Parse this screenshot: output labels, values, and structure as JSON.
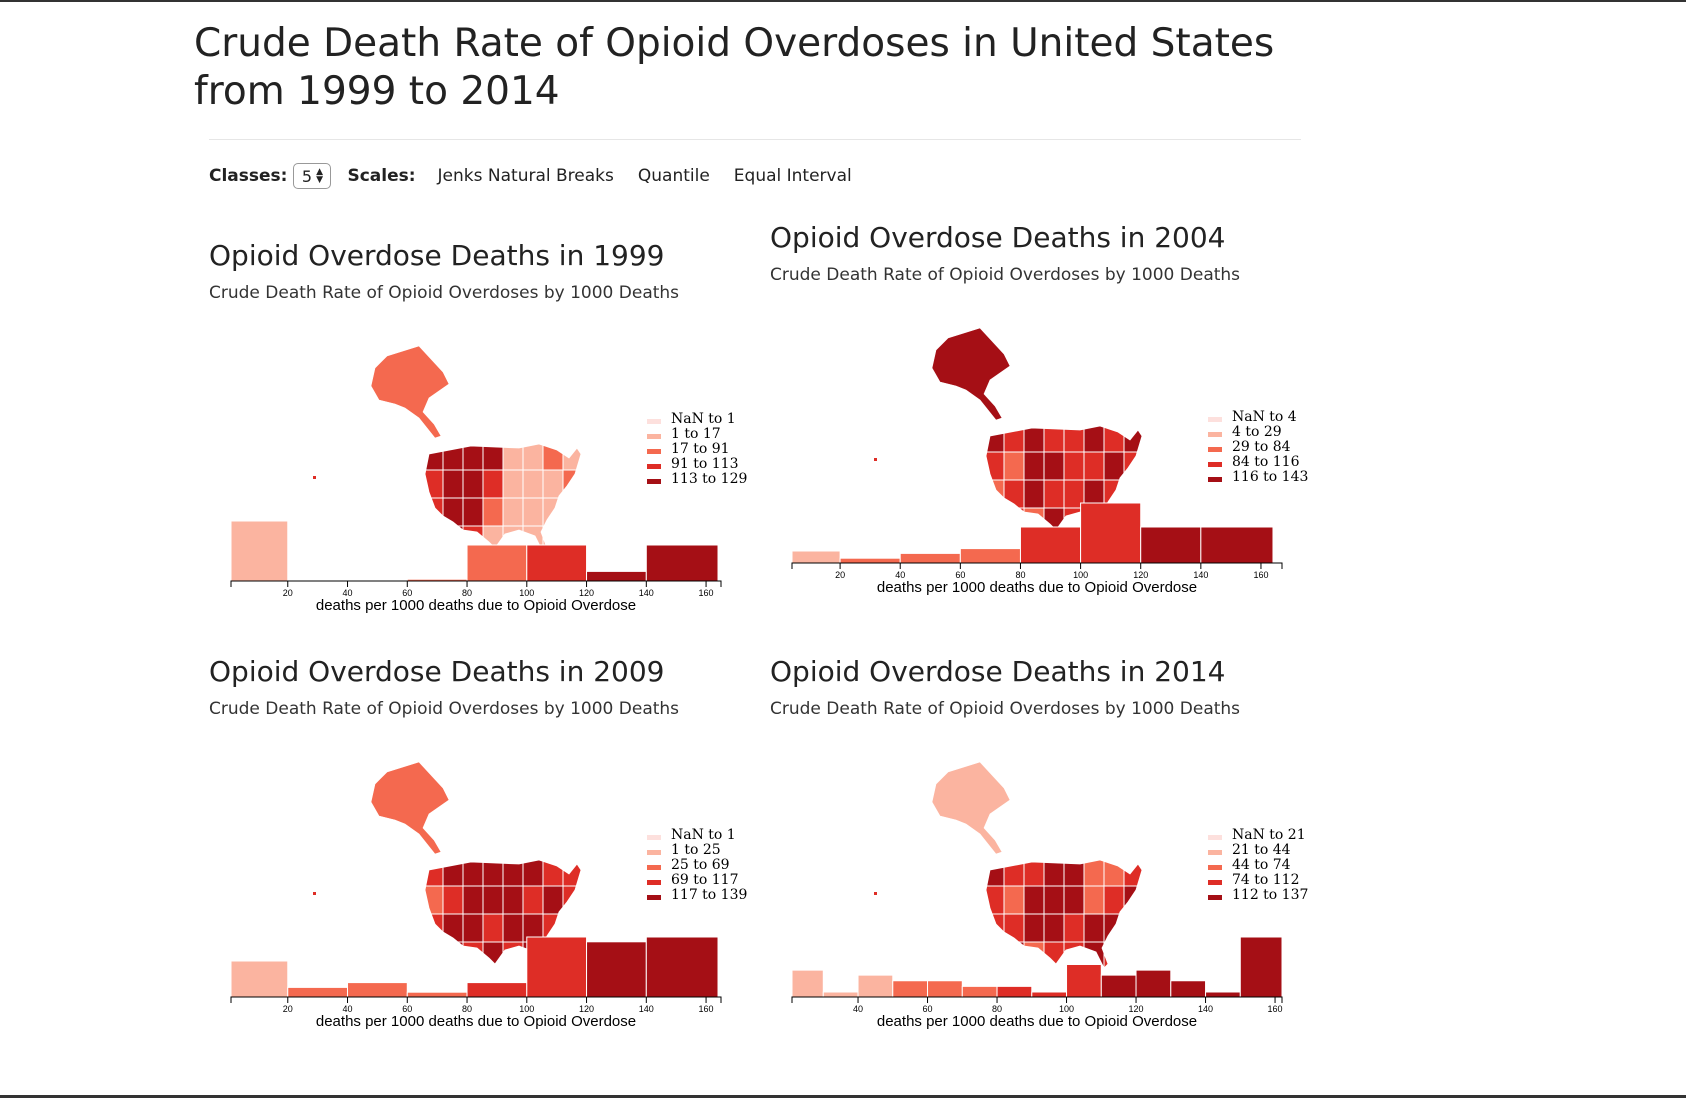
{
  "page": {
    "title": "Crude Death Rate of Opioid Overdoses in United States from 1999 to 2014"
  },
  "controls": {
    "classes_label": "Classes:",
    "classes_value": "5",
    "scales_label": "Scales:",
    "scales": [
      "Jenks Natural Breaks",
      "Quantile",
      "Equal Interval"
    ]
  },
  "colors": {
    "c0": "#fde0dd",
    "c1": "#fbb4a0",
    "c2": "#f4694f",
    "c3": "#de2d26",
    "c4": "#a50f15"
  },
  "panels": [
    {
      "title": "Opioid Overdose Deaths in 1999",
      "subtitle": "Crude Death Rate of Opioid Overdoses by 1000 Deaths",
      "legend": [
        "NaN to 1",
        "1 to 17",
        "17 to 91",
        "91 to 113",
        "113 to 129"
      ]
    },
    {
      "title": "Opioid Overdose Deaths in 2004",
      "subtitle": "Crude Death Rate of Opioid Overdoses by 1000 Deaths",
      "legend": [
        "NaN to 4",
        "4 to 29",
        "29 to 84",
        "84 to 116",
        "116 to 143"
      ]
    },
    {
      "title": "Opioid Overdose Deaths in 2009",
      "subtitle": "Crude Death Rate of Opioid Overdoses by 1000 Deaths",
      "legend": [
        "NaN to 1",
        "1 to 25",
        "25 to 69",
        "69 to 117",
        "117 to 139"
      ]
    },
    {
      "title": "Opioid Overdose Deaths in 2014",
      "subtitle": "Crude Death Rate of Opioid Overdoses by 1000 Deaths",
      "legend": [
        "NaN to 21",
        "21 to 44",
        "44 to 74",
        "74 to 112",
        "112 to 137"
      ]
    }
  ],
  "chart_data": [
    {
      "type": "bar",
      "title": "Opioid Overdose Deaths in 1999",
      "xlabel": "deaths per 1000 deaths due to Opioid Overdose",
      "xlim": [
        1,
        165
      ],
      "xticks": [
        20,
        40,
        60,
        80,
        100,
        120,
        140,
        160
      ],
      "bins": [
        {
          "x0": 1,
          "x1": 20,
          "count": 10,
          "cls": 1
        },
        {
          "x0": 20,
          "x1": 40,
          "count": 0,
          "cls": 1
        },
        {
          "x0": 40,
          "x1": 60,
          "count": 0,
          "cls": 1
        },
        {
          "x0": 60,
          "x1": 80,
          "count": 0.3,
          "cls": 2
        },
        {
          "x0": 80,
          "x1": 100,
          "count": 6,
          "cls": 2
        },
        {
          "x0": 100,
          "x1": 120,
          "count": 6,
          "cls": 3
        },
        {
          "x0": 120,
          "x1": 140,
          "count": 1.6,
          "cls": 4
        },
        {
          "x0": 140,
          "x1": 164,
          "count": 6,
          "cls": 4
        }
      ]
    },
    {
      "type": "bar",
      "title": "Opioid Overdose Deaths in 2004",
      "xlabel": "deaths per 1000 deaths due to Opioid Overdose",
      "xlim": [
        4,
        167
      ],
      "xticks": [
        20,
        40,
        60,
        80,
        100,
        120,
        140,
        160
      ],
      "bins": [
        {
          "x0": 4,
          "x1": 20,
          "count": 2,
          "cls": 1
        },
        {
          "x0": 20,
          "x1": 40,
          "count": 0.8,
          "cls": 2
        },
        {
          "x0": 40,
          "x1": 60,
          "count": 1.6,
          "cls": 2
        },
        {
          "x0": 60,
          "x1": 80,
          "count": 2.4,
          "cls": 2
        },
        {
          "x0": 80,
          "x1": 100,
          "count": 6,
          "cls": 3
        },
        {
          "x0": 100,
          "x1": 120,
          "count": 10,
          "cls": 3
        },
        {
          "x0": 120,
          "x1": 140,
          "count": 6,
          "cls": 4
        },
        {
          "x0": 140,
          "x1": 164,
          "count": 6,
          "cls": 4
        }
      ]
    },
    {
      "type": "bar",
      "title": "Opioid Overdose Deaths in 2009",
      "xlabel": "deaths per 1000 deaths due to Opioid Overdose",
      "xlim": [
        1,
        165
      ],
      "xticks": [
        20,
        40,
        60,
        80,
        100,
        120,
        140,
        160
      ],
      "bins": [
        {
          "x0": 1,
          "x1": 20,
          "count": 6,
          "cls": 1
        },
        {
          "x0": 20,
          "x1": 40,
          "count": 1.6,
          "cls": 2
        },
        {
          "x0": 40,
          "x1": 60,
          "count": 2.4,
          "cls": 2
        },
        {
          "x0": 60,
          "x1": 80,
          "count": 0.8,
          "cls": 2
        },
        {
          "x0": 80,
          "x1": 100,
          "count": 2.4,
          "cls": 3
        },
        {
          "x0": 100,
          "x1": 120,
          "count": 10,
          "cls": 3
        },
        {
          "x0": 120,
          "x1": 140,
          "count": 9.2,
          "cls": 4
        },
        {
          "x0": 140,
          "x1": 164,
          "count": 10,
          "cls": 4
        }
      ]
    },
    {
      "type": "bar",
      "title": "Opioid Overdose Deaths in 2014",
      "xlabel": "deaths per 1000 deaths due to Opioid Overdose",
      "xlim": [
        21,
        162
      ],
      "xticks": [
        40,
        60,
        80,
        100,
        120,
        140,
        160
      ],
      "bins": [
        {
          "x0": 21,
          "x1": 30,
          "count": 4.3,
          "cls": 1
        },
        {
          "x0": 30,
          "x1": 40,
          "count": 0.8,
          "cls": 1
        },
        {
          "x0": 40,
          "x1": 50,
          "count": 3.5,
          "cls": 1
        },
        {
          "x0": 50,
          "x1": 60,
          "count": 2.6,
          "cls": 2
        },
        {
          "x0": 60,
          "x1": 70,
          "count": 2.6,
          "cls": 2
        },
        {
          "x0": 70,
          "x1": 80,
          "count": 1.7,
          "cls": 2
        },
        {
          "x0": 80,
          "x1": 90,
          "count": 1.7,
          "cls": 3
        },
        {
          "x0": 90,
          "x1": 100,
          "count": 0.8,
          "cls": 3
        },
        {
          "x0": 100,
          "x1": 110,
          "count": 5.2,
          "cls": 3
        },
        {
          "x0": 110,
          "x1": 120,
          "count": 3.5,
          "cls": 4
        },
        {
          "x0": 120,
          "x1": 130,
          "count": 4.3,
          "cls": 4
        },
        {
          "x0": 130,
          "x1": 140,
          "count": 2.6,
          "cls": 4
        },
        {
          "x0": 140,
          "x1": 150,
          "count": 0.8,
          "cls": 4
        },
        {
          "x0": 150,
          "x1": 162,
          "count": 9.6,
          "cls": 4
        }
      ]
    }
  ]
}
